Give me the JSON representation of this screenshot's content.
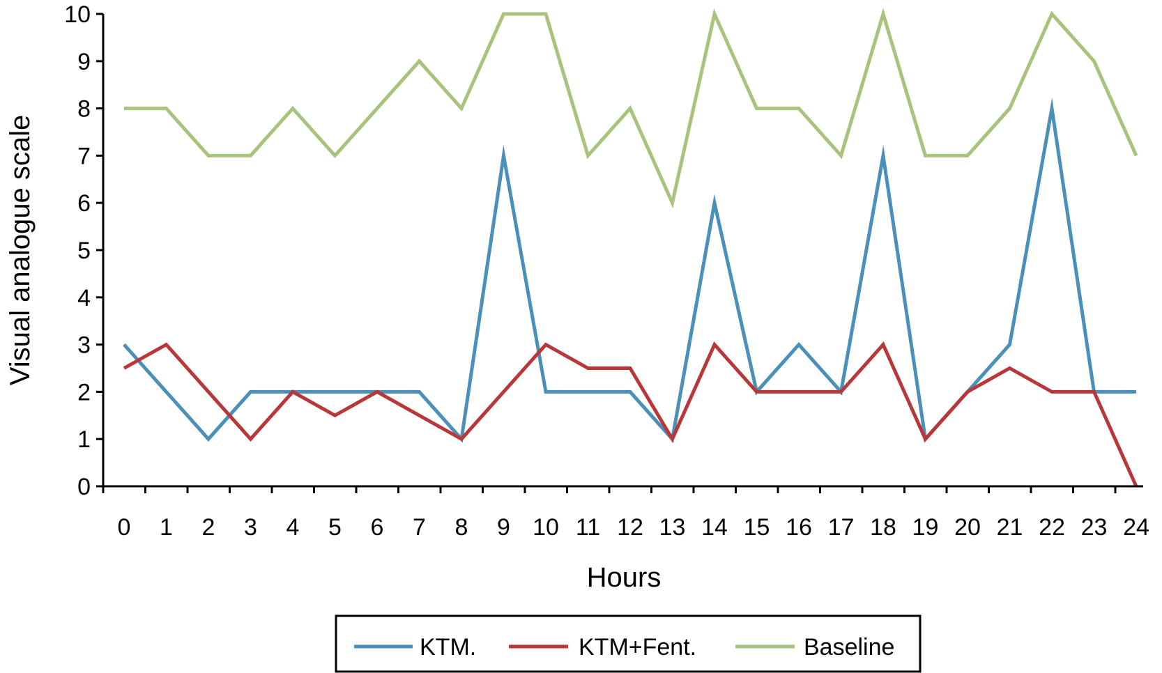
{
  "chart_data": {
    "type": "line",
    "title": "",
    "xlabel": "Hours",
    "ylabel": "Visual analogue scale",
    "x": [
      0,
      1,
      2,
      3,
      4,
      5,
      6,
      7,
      8,
      9,
      10,
      11,
      12,
      13,
      14,
      15,
      16,
      17,
      18,
      19,
      20,
      21,
      22,
      23,
      24
    ],
    "xlim": [
      0,
      24
    ],
    "ylim": [
      0,
      10
    ],
    "yticks": [
      0,
      1,
      2,
      3,
      4,
      5,
      6,
      7,
      8,
      9,
      10
    ],
    "grid": false,
    "legend_position": "bottom",
    "series": [
      {
        "name": "KTM.",
        "color": "#4a90b8",
        "values": [
          3,
          2,
          1,
          2,
          2,
          2,
          2,
          2,
          1,
          7,
          2,
          2,
          2,
          1,
          6,
          2,
          3,
          2,
          7,
          1,
          2,
          3,
          8,
          2,
          2
        ]
      },
      {
        "name": "KTM+Fent.",
        "color": "#b8383a",
        "values": [
          2.5,
          3,
          2,
          1,
          2,
          1.5,
          2,
          1.5,
          1,
          2,
          3,
          2.5,
          2.5,
          1,
          3,
          2,
          2,
          2,
          3,
          1,
          2,
          2.5,
          2,
          2,
          0
        ]
      },
      {
        "name": "Baseline",
        "color": "#a8c47c",
        "values": [
          8,
          8,
          7,
          7,
          8,
          7,
          8,
          9,
          8,
          10,
          10,
          7,
          8,
          6,
          10,
          8,
          8,
          7,
          10,
          7,
          7,
          8,
          10,
          9,
          7
        ]
      }
    ]
  }
}
